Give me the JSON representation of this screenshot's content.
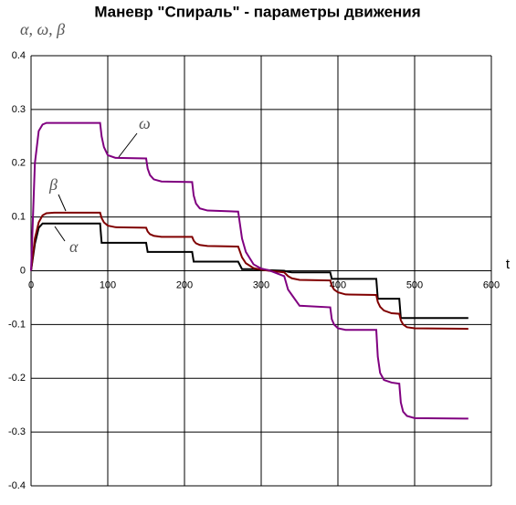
{
  "chart_data": {
    "type": "line",
    "title": "Маневр \"Спираль\" - параметры движения",
    "y_label": "α, ω, β",
    "x_label": "t",
    "x": [
      0,
      5,
      10,
      15,
      20,
      30,
      90,
      92,
      95,
      100,
      110,
      150,
      152,
      155,
      160,
      170,
      210,
      212,
      215,
      220,
      230,
      270,
      275,
      280,
      290,
      300,
      310,
      330,
      335,
      340,
      350,
      390,
      392,
      395,
      400,
      410,
      450,
      452,
      455,
      460,
      470,
      480,
      482,
      485,
      490,
      500,
      570
    ],
    "series": [
      {
        "name": "α",
        "color": "#000000",
        "values": [
          0,
          0.05,
          0.08,
          0.088,
          0.088,
          0.088,
          0.088,
          0.052,
          0.052,
          0.052,
          0.052,
          0.052,
          0.035,
          0.035,
          0.035,
          0.035,
          0.035,
          0.017,
          0.017,
          0.017,
          0.017,
          0.017,
          0.003,
          0.003,
          0.003,
          0.002,
          0.001,
          0,
          -0.002,
          -0.003,
          -0.003,
          -0.003,
          -0.015,
          -0.015,
          -0.015,
          -0.015,
          -0.015,
          -0.052,
          -0.052,
          -0.052,
          -0.052,
          -0.052,
          -0.088,
          -0.088,
          -0.088,
          -0.088,
          -0.088
        ]
      },
      {
        "name": "β",
        "color": "#800000",
        "values": [
          0,
          0.06,
          0.09,
          0.103,
          0.107,
          0.108,
          0.108,
          0.098,
          0.09,
          0.084,
          0.081,
          0.08,
          0.073,
          0.068,
          0.065,
          0.063,
          0.063,
          0.056,
          0.051,
          0.048,
          0.046,
          0.045,
          0.025,
          0.014,
          0.005,
          0.002,
          0,
          -0.003,
          -0.01,
          -0.014,
          -0.017,
          -0.018,
          -0.028,
          -0.035,
          -0.04,
          -0.044,
          -0.045,
          -0.058,
          -0.067,
          -0.074,
          -0.079,
          -0.08,
          -0.092,
          -0.1,
          -0.105,
          -0.107,
          -0.108
        ]
      },
      {
        "name": "ω",
        "color": "#800080",
        "values": [
          0,
          0.2,
          0.26,
          0.272,
          0.275,
          0.275,
          0.275,
          0.25,
          0.23,
          0.215,
          0.21,
          0.209,
          0.19,
          0.178,
          0.17,
          0.166,
          0.165,
          0.14,
          0.125,
          0.116,
          0.112,
          0.11,
          0.06,
          0.035,
          0.012,
          0.004,
          0.001,
          -0.01,
          -0.035,
          -0.045,
          -0.065,
          -0.068,
          -0.09,
          -0.1,
          -0.107,
          -0.11,
          -0.11,
          -0.16,
          -0.19,
          -0.203,
          -0.208,
          -0.21,
          -0.245,
          -0.262,
          -0.27,
          -0.274,
          -0.275
        ]
      }
    ],
    "xlim": [
      0,
      600
    ],
    "xticks": [
      0,
      100,
      200,
      300,
      400,
      500,
      600
    ],
    "ylim": [
      -0.4,
      0.4
    ],
    "yticks": [
      0.4,
      0.3,
      0.2,
      0.1,
      0,
      -0.1,
      -0.2,
      -0.3,
      -0.4
    ],
    "grid": true
  }
}
